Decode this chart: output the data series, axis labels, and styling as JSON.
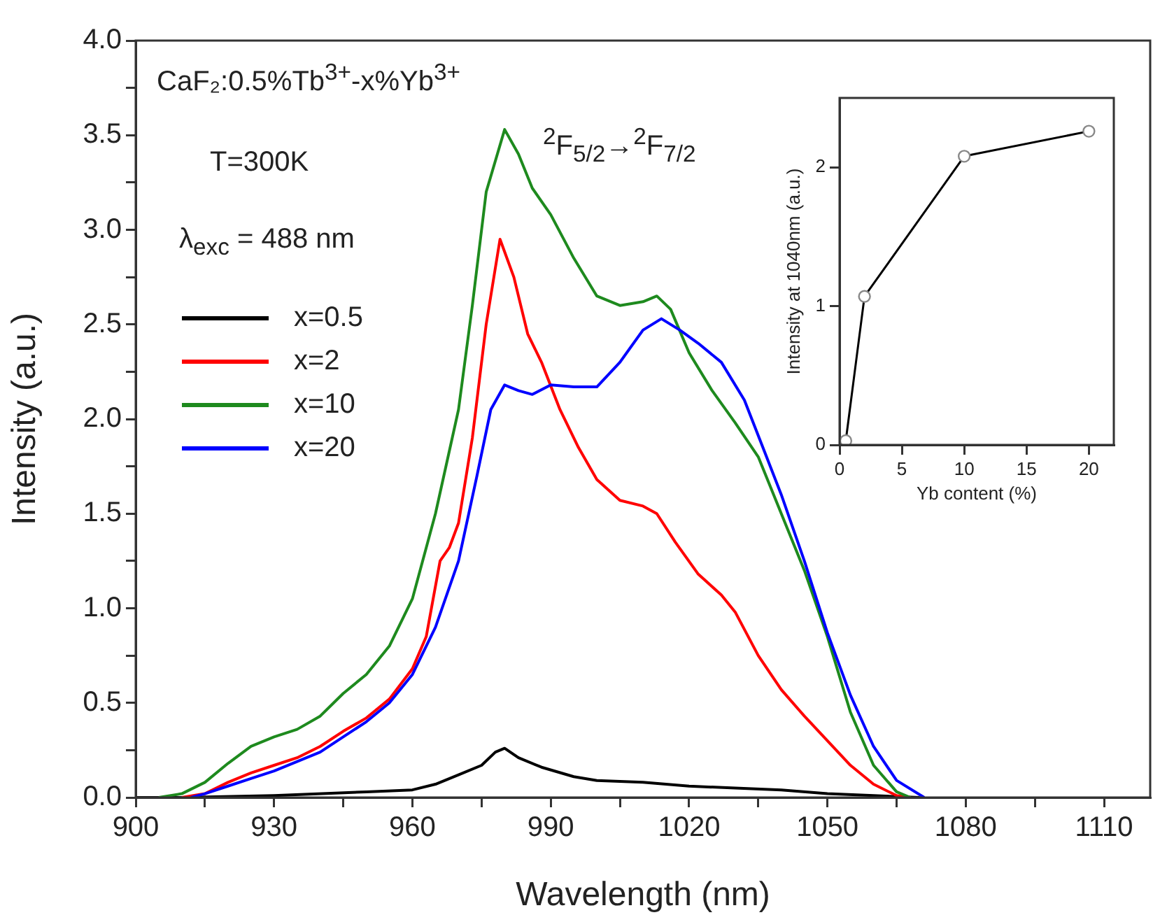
{
  "chart_data": [
    {
      "type": "line",
      "xlabel": "Wavelength (nm)",
      "ylabel": "Intensity (a.u.)",
      "annotations": [
        "CaF₂:0.5%Tb$^{3+}$-x%Yb$^{3+}$",
        "T=300K",
        "λ$_{exc}$ = 488 nm",
        "$^{2}$F$_{5/2}$→$^{2}$F$_{7/2}$"
      ],
      "xlim": [
        900,
        1120
      ],
      "ylim": [
        0,
        4
      ],
      "xticks": [
        900,
        {
          "value": 915,
          "label": null
        },
        930,
        {
          "value": 945,
          "label": null
        },
        960,
        {
          "value": 975,
          "label": null
        },
        990,
        {
          "value": 1005,
          "label": null
        },
        1020,
        {
          "value": 1035,
          "label": null
        },
        1050,
        {
          "value": 1065,
          "label": null
        },
        1080,
        {
          "value": 1095,
          "label": null
        },
        1110
      ],
      "yticks": [
        {
          "value": 0,
          "label": "0.0"
        },
        {
          "value": 0.25,
          "label": null
        },
        0.5,
        {
          "value": 0.75,
          "label": null
        },
        {
          "value": 1,
          "label": "1.0"
        },
        {
          "value": 1.25,
          "label": null
        },
        1.5,
        {
          "value": 1.75,
          "label": null
        },
        {
          "value": 2,
          "label": "2.0"
        },
        {
          "value": 2.25,
          "label": null
        },
        2.5,
        {
          "value": 2.75,
          "label": null
        },
        {
          "value": 3,
          "label": "3.0"
        },
        {
          "value": 3.25,
          "label": null
        },
        3.5,
        {
          "value": 3.75,
          "label": null
        },
        {
          "value": 4,
          "label": "4.0"
        }
      ],
      "grid": false,
      "legend": "top left",
      "marker": "none",
      "line_style": "solid",
      "series": [
        {
          "name": "x=0.5",
          "color": "#000000",
          "x": [
            900,
            910,
            930,
            950,
            960,
            965,
            970,
            975,
            978,
            980,
            983,
            988,
            995,
            1000,
            1010,
            1020,
            1030,
            1040,
            1050,
            1060,
            1070
          ],
          "values": [
            0,
            0,
            0.01,
            0.03,
            0.04,
            0.07,
            0.12,
            0.17,
            0.24,
            0.26,
            0.21,
            0.16,
            0.11,
            0.09,
            0.08,
            0.06,
            0.05,
            0.04,
            0.02,
            0.01,
            0
          ]
        },
        {
          "name": "x=2",
          "color": "#ff0000",
          "x": [
            910,
            915,
            920,
            925,
            930,
            935,
            940,
            945,
            950,
            955,
            960,
            963,
            966,
            968,
            970,
            973,
            976,
            979,
            982,
            985,
            988,
            992,
            996,
            1000,
            1005,
            1010,
            1013,
            1017,
            1022,
            1027,
            1030,
            1035,
            1040,
            1045,
            1050,
            1055,
            1060,
            1065,
            1068
          ],
          "values": [
            0,
            0.02,
            0.08,
            0.13,
            0.17,
            0.21,
            0.27,
            0.35,
            0.42,
            0.52,
            0.68,
            0.85,
            1.25,
            1.32,
            1.45,
            1.9,
            2.5,
            2.95,
            2.75,
            2.45,
            2.3,
            2.05,
            1.85,
            1.68,
            1.57,
            1.54,
            1.5,
            1.35,
            1.18,
            1.07,
            0.98,
            0.75,
            0.57,
            0.43,
            0.3,
            0.17,
            0.07,
            0.01,
            0
          ]
        },
        {
          "name": "x=10",
          "color": "#1e8a1e",
          "x": [
            905,
            910,
            915,
            920,
            925,
            930,
            935,
            940,
            945,
            950,
            955,
            960,
            965,
            970,
            973,
            976,
            980,
            983,
            986,
            990,
            995,
            1000,
            1005,
            1010,
            1013,
            1016,
            1020,
            1025,
            1030,
            1035,
            1040,
            1045,
            1050,
            1055,
            1060,
            1065,
            1068
          ],
          "values": [
            0,
            0.02,
            0.08,
            0.18,
            0.27,
            0.32,
            0.36,
            0.43,
            0.55,
            0.65,
            0.8,
            1.05,
            1.5,
            2.05,
            2.6,
            3.2,
            3.53,
            3.4,
            3.22,
            3.08,
            2.85,
            2.65,
            2.6,
            2.62,
            2.65,
            2.58,
            2.35,
            2.15,
            1.98,
            1.8,
            1.5,
            1.2,
            0.85,
            0.45,
            0.17,
            0.03,
            0
          ]
        },
        {
          "name": "x=20",
          "color": "#0000ff",
          "x": [
            912,
            915,
            920,
            925,
            930,
            935,
            940,
            945,
            950,
            955,
            960,
            965,
            970,
            974,
            977,
            980,
            983,
            986,
            990,
            995,
            1000,
            1005,
            1010,
            1014,
            1018,
            1022,
            1027,
            1032,
            1036,
            1040,
            1045,
            1050,
            1055,
            1060,
            1065,
            1071
          ],
          "values": [
            0,
            0.02,
            0.06,
            0.1,
            0.14,
            0.19,
            0.24,
            0.32,
            0.4,
            0.5,
            0.65,
            0.9,
            1.25,
            1.7,
            2.05,
            2.18,
            2.15,
            2.13,
            2.18,
            2.17,
            2.17,
            2.3,
            2.47,
            2.53,
            2.47,
            2.4,
            2.3,
            2.1,
            1.85,
            1.6,
            1.25,
            0.87,
            0.54,
            0.27,
            0.09,
            0
          ]
        }
      ]
    },
    {
      "type": "line",
      "xlabel": "Yb content (%)",
      "ylabel": "Intensity at 1040nm (a.u.)",
      "xlim": [
        0,
        22
      ],
      "ylim": [
        0,
        2.5
      ],
      "xticks": [
        0,
        5,
        10,
        15,
        20
      ],
      "yticks": [
        0,
        1,
        2
      ],
      "grid": false,
      "marker": "circle",
      "line_style": "solid",
      "series": [
        {
          "color": "#000000",
          "x": [
            0.5,
            2,
            10,
            20
          ],
          "values": [
            0.03,
            1.07,
            2.08,
            2.26
          ]
        }
      ]
    }
  ]
}
